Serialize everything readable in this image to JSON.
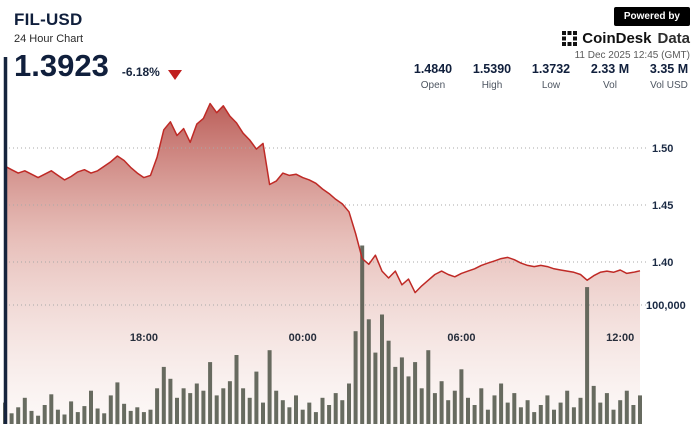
{
  "header": {
    "symbol": "FIL-USD",
    "subtitle": "24 Hour Chart",
    "price": "1.3923",
    "change": "-6.18%",
    "powered_by": "Powered by",
    "brand": {
      "name_bold": "CoinDesk",
      "name_light": "Data"
    },
    "timestamp": "11 Dec 2025 12:45 (GMT)",
    "stats": [
      {
        "value": "1.4840",
        "label": "Open"
      },
      {
        "value": "1.5390",
        "label": "High"
      },
      {
        "value": "1.3732",
        "label": "Low"
      },
      {
        "value": "2.33 M",
        "label": "Vol"
      },
      {
        "value": "3.35 M",
        "label": "Vol USD"
      }
    ]
  },
  "colors": {
    "navy_text": "#101f3c",
    "line_red": "#bf2a26",
    "triangle_red": "#c01f1f",
    "volume_bar": "#5a5e53",
    "axis_line": "#16243d",
    "grid_gray": "#a8a8a8"
  },
  "chart_data": {
    "type": "area",
    "title": "FIL-USD 24 Hour Chart",
    "x_unit": "hours_from_window_start",
    "x_range_hours": 24,
    "grid": "dotted-horizontal",
    "legend": "none",
    "price_ylim": [
      1.36,
      1.56
    ],
    "price_ticks": [
      {
        "value": 1.5,
        "label": "1.50"
      },
      {
        "value": 1.45,
        "label": "1.45"
      },
      {
        "value": 1.4,
        "label": "1.40"
      }
    ],
    "volume_tick": {
      "value": 100000,
      "label": "100,000"
    },
    "time_ticks": [
      {
        "hour": 5.25,
        "label": "18:00"
      },
      {
        "hour": 11.25,
        "label": "00:00"
      },
      {
        "hour": 17.25,
        "label": "06:00"
      },
      {
        "hour": 23.25,
        "label": "12:00"
      }
    ],
    "series": [
      {
        "name": "price",
        "values": [
          1.484,
          1.481,
          1.478,
          1.48,
          1.477,
          1.474,
          1.477,
          1.48,
          1.476,
          1.472,
          1.475,
          1.479,
          1.481,
          1.478,
          1.48,
          1.484,
          1.488,
          1.493,
          1.489,
          1.483,
          1.478,
          1.474,
          1.476,
          1.492,
          1.516,
          1.523,
          1.511,
          1.517,
          1.505,
          1.521,
          1.526,
          1.539,
          1.531,
          1.537,
          1.528,
          1.522,
          1.513,
          1.507,
          1.499,
          1.504,
          1.468,
          1.471,
          1.478,
          1.476,
          1.477,
          1.474,
          1.472,
          1.469,
          1.464,
          1.46,
          1.455,
          1.451,
          1.444,
          1.425,
          1.403,
          1.398,
          1.406,
          1.392,
          1.386,
          1.392,
          1.38,
          1.385,
          1.3732,
          1.379,
          1.384,
          1.389,
          1.392,
          1.389,
          1.387,
          1.39,
          1.392,
          1.394,
          1.397,
          1.399,
          1.401,
          1.403,
          1.404,
          1.402,
          1.399,
          1.397,
          1.396,
          1.397,
          1.396,
          1.394,
          1.393,
          1.392,
          1.391,
          1.389,
          1.384,
          1.388,
          1.391,
          1.392,
          1.391,
          1.393,
          1.39,
          1.391,
          1.3923
        ]
      },
      {
        "name": "volume",
        "values": [
          18000,
          9000,
          14000,
          22000,
          11000,
          7000,
          16000,
          25000,
          12000,
          8000,
          19000,
          10000,
          15000,
          28000,
          13000,
          9000,
          24000,
          35000,
          17000,
          11000,
          14000,
          10000,
          12000,
          30000,
          48000,
          38000,
          22000,
          30000,
          26000,
          34000,
          28000,
          52000,
          24000,
          30000,
          36000,
          58000,
          30000,
          22000,
          44000,
          18000,
          62000,
          28000,
          20000,
          14000,
          24000,
          12000,
          18000,
          10000,
          22000,
          16000,
          26000,
          20000,
          34000,
          78000,
          150000,
          88000,
          60000,
          92000,
          70000,
          48000,
          56000,
          40000,
          52000,
          30000,
          62000,
          26000,
          36000,
          20000,
          28000,
          46000,
          22000,
          16000,
          30000,
          12000,
          24000,
          34000,
          18000,
          26000,
          14000,
          20000,
          10000,
          16000,
          24000,
          12000,
          18000,
          28000,
          14000,
          22000,
          115000,
          32000,
          18000,
          26000,
          12000,
          20000,
          28000,
          16000,
          24000
        ]
      }
    ]
  }
}
